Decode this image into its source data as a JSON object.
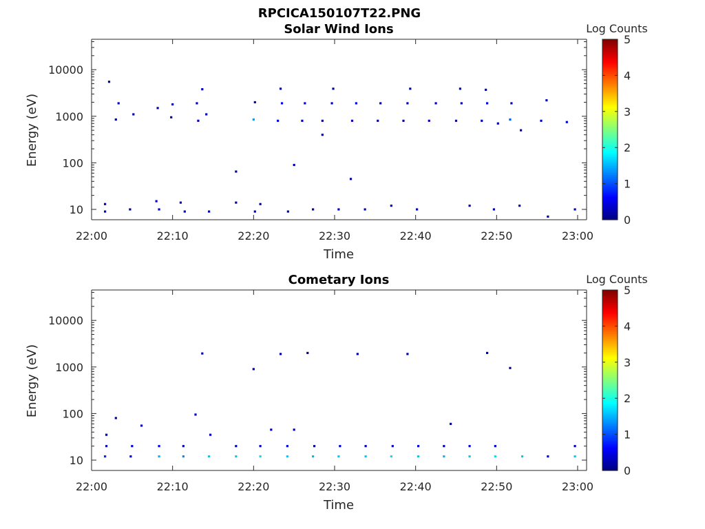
{
  "figure": {
    "filename": "RPCICA150107T22.PNG"
  },
  "chart_data": [
    {
      "type": "heatmap",
      "title": "Solar Wind Ions",
      "xlabel": "Time",
      "ylabel": "Energy (eV)",
      "yscale": "log",
      "ylim": [
        6,
        45000
      ],
      "xlim": [
        "22:00",
        "23:00"
      ],
      "xticks": [
        "22:00",
        "22:10",
        "22:20",
        "22:30",
        "22:40",
        "22:50",
        "23:00"
      ],
      "yticks": [
        10,
        100,
        1000,
        10000
      ],
      "yticklabels": [
        "10",
        "100",
        "1000",
        "10000"
      ],
      "colorbar": {
        "label": "Log Counts",
        "min": 0,
        "max": 5,
        "ticks": [
          "0",
          "1",
          "2",
          "3",
          "4",
          "5"
        ],
        "colormap": "jet"
      },
      "cells": [
        {
          "t": "22:01:40",
          "e": 13,
          "v": 0.3
        },
        {
          "t": "22:01:40",
          "e": 9,
          "v": 0.3
        },
        {
          "t": "22:04:45",
          "e": 10,
          "v": 0.2
        },
        {
          "t": "22:08:00",
          "e": 15,
          "v": 0.3
        },
        {
          "t": "22:08:20",
          "e": 10,
          "v": 0.4
        },
        {
          "t": "22:11:00",
          "e": 14,
          "v": 0.3
        },
        {
          "t": "22:11:30",
          "e": 9,
          "v": 0.3
        },
        {
          "t": "22:14:30",
          "e": 9,
          "v": 0.2
        },
        {
          "t": "22:17:50",
          "e": 14,
          "v": 0.2
        },
        {
          "t": "22:20:10",
          "e": 9,
          "v": 0.3
        },
        {
          "t": "22:20:50",
          "e": 13,
          "v": 0.3
        },
        {
          "t": "22:24:15",
          "e": 9,
          "v": 0.2
        },
        {
          "t": "22:27:20",
          "e": 10,
          "v": 0.3
        },
        {
          "t": "22:30:30",
          "e": 10,
          "v": 0.3
        },
        {
          "t": "22:33:45",
          "e": 10,
          "v": 0.3
        },
        {
          "t": "22:37:00",
          "e": 12,
          "v": 0.4
        },
        {
          "t": "22:40:10",
          "e": 10,
          "v": 0.3
        },
        {
          "t": "22:46:40",
          "e": 12,
          "v": 0.3
        },
        {
          "t": "22:49:40",
          "e": 10,
          "v": 0.3
        },
        {
          "t": "22:52:50",
          "e": 12,
          "v": 0.3
        },
        {
          "t": "22:56:20",
          "e": 7,
          "v": 0.2
        },
        {
          "t": "22:59:40",
          "e": 10,
          "v": 0.3
        },
        {
          "t": "22:02:10",
          "e": 5500,
          "v": 0.2
        },
        {
          "t": "22:03:20",
          "e": 1900,
          "v": 0.4
        },
        {
          "t": "22:03:00",
          "e": 850,
          "v": 0.2
        },
        {
          "t": "22:05:10",
          "e": 1100,
          "v": 0.2
        },
        {
          "t": "22:08:10",
          "e": 1500,
          "v": 0.2
        },
        {
          "t": "22:10:00",
          "e": 1800,
          "v": 0.4
        },
        {
          "t": "22:09:50",
          "e": 950,
          "v": 0.2
        },
        {
          "t": "22:13:10",
          "e": 800,
          "v": 0.3
        },
        {
          "t": "22:13:00",
          "e": 1900,
          "v": 0.3
        },
        {
          "t": "22:13:40",
          "e": 3800,
          "v": 0.3
        },
        {
          "t": "22:14:10",
          "e": 1100,
          "v": 0.3
        },
        {
          "t": "22:20:00",
          "e": 850,
          "v": 1.4
        },
        {
          "t": "22:20:10",
          "e": 2000,
          "v": 0.3
        },
        {
          "t": "22:23:00",
          "e": 800,
          "v": 0.4
        },
        {
          "t": "22:23:30",
          "e": 1900,
          "v": 0.6
        },
        {
          "t": "22:23:20",
          "e": 3900,
          "v": 0.2
        },
        {
          "t": "22:26:00",
          "e": 800,
          "v": 0.3
        },
        {
          "t": "22:26:20",
          "e": 1900,
          "v": 0.5
        },
        {
          "t": "22:28:30",
          "e": 800,
          "v": 0.3
        },
        {
          "t": "22:29:40",
          "e": 1900,
          "v": 0.3
        },
        {
          "t": "22:29:50",
          "e": 3900,
          "v": 0.2
        },
        {
          "t": "22:28:30",
          "e": 400,
          "v": 0.2
        },
        {
          "t": "22:32:10",
          "e": 800,
          "v": 0.3
        },
        {
          "t": "22:32:40",
          "e": 1900,
          "v": 0.5
        },
        {
          "t": "22:35:20",
          "e": 800,
          "v": 0.3
        },
        {
          "t": "22:35:40",
          "e": 1900,
          "v": 0.3
        },
        {
          "t": "22:38:30",
          "e": 800,
          "v": 0.2
        },
        {
          "t": "22:39:00",
          "e": 1900,
          "v": 0.3
        },
        {
          "t": "22:39:20",
          "e": 3900,
          "v": 0.2
        },
        {
          "t": "22:41:40",
          "e": 800,
          "v": 0.3
        },
        {
          "t": "22:42:30",
          "e": 1900,
          "v": 0.4
        },
        {
          "t": "22:45:00",
          "e": 800,
          "v": 0.3
        },
        {
          "t": "22:45:40",
          "e": 1900,
          "v": 0.4
        },
        {
          "t": "22:45:30",
          "e": 3900,
          "v": 0.3
        },
        {
          "t": "22:48:10",
          "e": 800,
          "v": 0.2
        },
        {
          "t": "22:48:50",
          "e": 1900,
          "v": 0.5
        },
        {
          "t": "22:48:40",
          "e": 3700,
          "v": 0.2
        },
        {
          "t": "22:51:40",
          "e": 850,
          "v": 1.1
        },
        {
          "t": "22:51:50",
          "e": 1900,
          "v": 0.4
        },
        {
          "t": "22:50:10",
          "e": 700,
          "v": 0.2
        },
        {
          "t": "22:53:00",
          "e": 500,
          "v": 0.2
        },
        {
          "t": "22:55:30",
          "e": 800,
          "v": 0.4
        },
        {
          "t": "22:56:10",
          "e": 2200,
          "v": 0.2
        },
        {
          "t": "22:58:40",
          "e": 750,
          "v": 0.4
        },
        {
          "t": "22:17:50",
          "e": 65,
          "v": 0.2
        },
        {
          "t": "22:25:00",
          "e": 90,
          "v": 0.2
        },
        {
          "t": "22:32:00",
          "e": 45,
          "v": 0.2
        }
      ]
    },
    {
      "type": "heatmap",
      "title": "Cometary Ions",
      "xlabel": "Time",
      "ylabel": "Energy (eV)",
      "yscale": "log",
      "ylim": [
        6,
        45000
      ],
      "xlim": [
        "22:00",
        "23:00"
      ],
      "xticks": [
        "22:00",
        "22:10",
        "22:20",
        "22:30",
        "22:40",
        "22:50",
        "23:00"
      ],
      "yticks": [
        10,
        100,
        1000,
        10000
      ],
      "yticklabels": [
        "10",
        "100",
        "1000",
        "10000"
      ],
      "colorbar": {
        "label": "Log Counts",
        "min": 0,
        "max": 5,
        "ticks": [
          "0",
          "1",
          "2",
          "3",
          "4",
          "5"
        ],
        "colormap": "jet"
      },
      "cells": [
        {
          "t": "22:01:40",
          "e": 12,
          "v": 0.8
        },
        {
          "t": "22:01:50",
          "e": 20,
          "v": 0.5
        },
        {
          "t": "22:01:50",
          "e": 35,
          "v": 0.2
        },
        {
          "t": "22:04:50",
          "e": 12,
          "v": 0.5
        },
        {
          "t": "22:05:00",
          "e": 20,
          "v": 0.4
        },
        {
          "t": "22:08:20",
          "e": 12,
          "v": 1.5
        },
        {
          "t": "22:08:20",
          "e": 20,
          "v": 0.6
        },
        {
          "t": "22:11:20",
          "e": 12,
          "v": 1.3
        },
        {
          "t": "22:11:20",
          "e": 20,
          "v": 0.4
        },
        {
          "t": "22:14:30",
          "e": 12,
          "v": 1.6
        },
        {
          "t": "22:14:40",
          "e": 35,
          "v": 0.3
        },
        {
          "t": "22:17:50",
          "e": 12,
          "v": 1.6
        },
        {
          "t": "22:17:50",
          "e": 20,
          "v": 0.3
        },
        {
          "t": "22:20:50",
          "e": 12,
          "v": 1.7
        },
        {
          "t": "22:20:50",
          "e": 20,
          "v": 0.4
        },
        {
          "t": "22:24:10",
          "e": 12,
          "v": 1.6
        },
        {
          "t": "22:24:10",
          "e": 20,
          "v": 0.4
        },
        {
          "t": "22:27:20",
          "e": 12,
          "v": 1.5
        },
        {
          "t": "22:27:30",
          "e": 20,
          "v": 0.3
        },
        {
          "t": "22:30:30",
          "e": 12,
          "v": 1.6
        },
        {
          "t": "22:30:40",
          "e": 20,
          "v": 0.4
        },
        {
          "t": "22:33:50",
          "e": 12,
          "v": 1.6
        },
        {
          "t": "22:33:50",
          "e": 20,
          "v": 0.3
        },
        {
          "t": "22:37:00",
          "e": 12,
          "v": 1.7
        },
        {
          "t": "22:37:10",
          "e": 20,
          "v": 0.5
        },
        {
          "t": "22:40:20",
          "e": 12,
          "v": 1.6
        },
        {
          "t": "22:40:20",
          "e": 20,
          "v": 0.4
        },
        {
          "t": "22:43:30",
          "e": 12,
          "v": 1.5
        },
        {
          "t": "22:43:30",
          "e": 20,
          "v": 0.3
        },
        {
          "t": "22:46:40",
          "e": 12,
          "v": 1.6
        },
        {
          "t": "22:46:40",
          "e": 20,
          "v": 0.5
        },
        {
          "t": "22:49:50",
          "e": 12,
          "v": 1.7
        },
        {
          "t": "22:49:50",
          "e": 20,
          "v": 0.3
        },
        {
          "t": "22:53:10",
          "e": 12,
          "v": 1.6
        },
        {
          "t": "22:56:20",
          "e": 12,
          "v": 0.4
        },
        {
          "t": "22:59:40",
          "e": 12,
          "v": 1.6
        },
        {
          "t": "22:59:40",
          "e": 20,
          "v": 0.3
        },
        {
          "t": "22:13:40",
          "e": 1950,
          "v": 0.2
        },
        {
          "t": "22:20:00",
          "e": 900,
          "v": 0.2
        },
        {
          "t": "22:23:20",
          "e": 1900,
          "v": 0.2
        },
        {
          "t": "22:26:40",
          "e": 2000,
          "v": 0.2
        },
        {
          "t": "22:32:50",
          "e": 1900,
          "v": 0.2
        },
        {
          "t": "22:39:00",
          "e": 1900,
          "v": 0.2
        },
        {
          "t": "22:48:50",
          "e": 2000,
          "v": 0.2
        },
        {
          "t": "22:51:40",
          "e": 950,
          "v": 0.2
        },
        {
          "t": "22:03:00",
          "e": 80,
          "v": 0.2
        },
        {
          "t": "22:06:10",
          "e": 55,
          "v": 0.3
        },
        {
          "t": "22:12:50",
          "e": 95,
          "v": 0.2
        },
        {
          "t": "22:22:10",
          "e": 45,
          "v": 0.3
        },
        {
          "t": "22:25:00",
          "e": 45,
          "v": 0.2
        },
        {
          "t": "22:44:20",
          "e": 60,
          "v": 0.2
        }
      ]
    }
  ]
}
